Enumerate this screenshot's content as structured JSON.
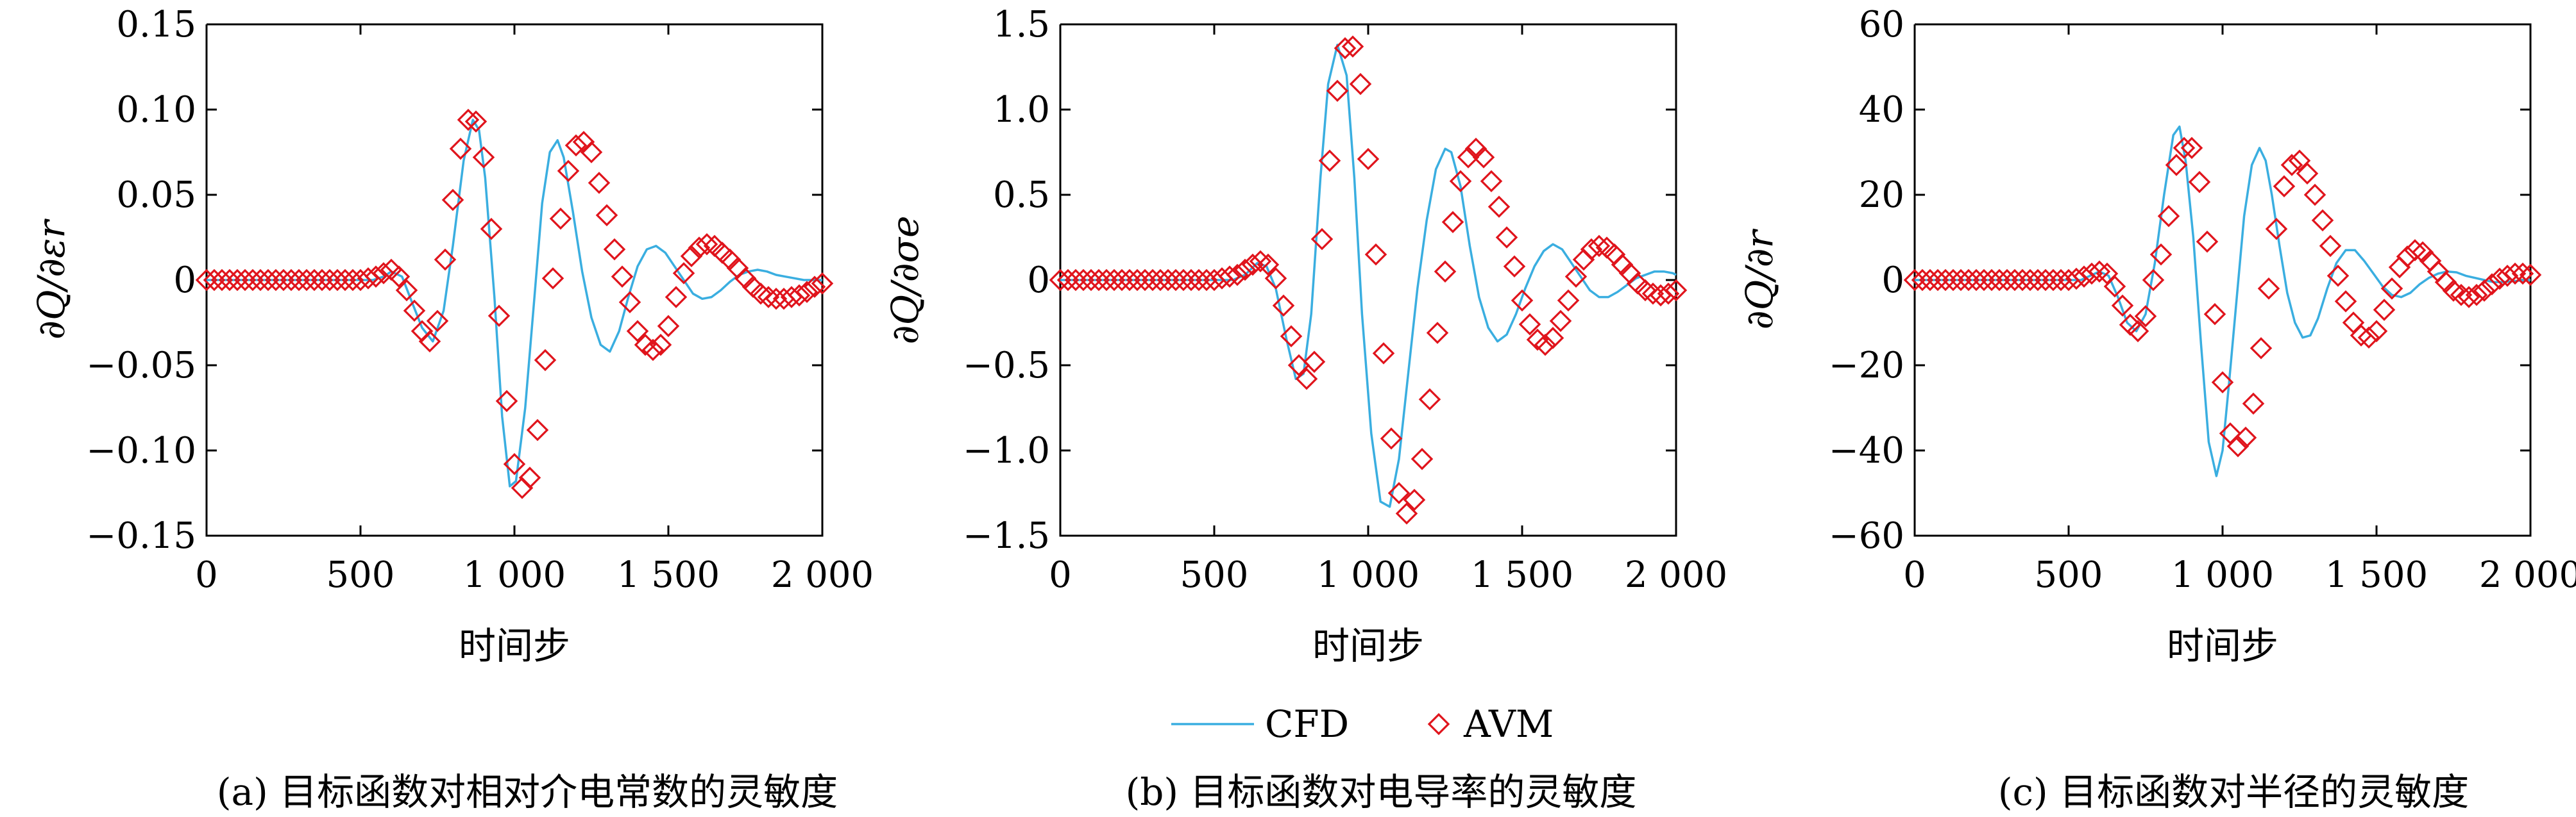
{
  "figure": {
    "xlabel": "时间步",
    "legend": {
      "cfd_label": "CFD",
      "avm_label": "AVM",
      "cfd_color": "#3aaee0",
      "avm_color": "#e0141c"
    },
    "panels": [
      {
        "caption": "(a) 目标函数对相对介电常数的灵敏度",
        "ylabel": "∂Q/∂εr"
      },
      {
        "caption": "(b) 目标函数对电导率的灵敏度",
        "ylabel": "∂Q/∂σe"
      },
      {
        "caption": "(c) 目标函数对半径的灵敏度",
        "ylabel": "∂Q/∂r"
      }
    ]
  },
  "chart_data": [
    {
      "type": "line",
      "ylabel": "∂Q/∂εr",
      "xlabel": "时间步",
      "xlim": [
        0,
        2000
      ],
      "ylim": [
        -0.15,
        0.15
      ],
      "x_ticks": [
        0,
        500,
        1000,
        1500,
        2000
      ],
      "x_tick_labels": [
        "0",
        "500",
        "1 000",
        "1 500",
        "2 000"
      ],
      "y_ticks": [
        -0.15,
        -0.1,
        -0.05,
        0,
        0.05,
        0.1,
        0.15
      ],
      "y_tick_labels": [
        "−0.15",
        "−0.10",
        "−0.05",
        "0",
        "0.05",
        "0.10",
        "0.15"
      ],
      "legend": "bottom-center",
      "grid": false,
      "series": [
        {
          "name": "CFD",
          "style": "line",
          "x": [
            0,
            540,
            575,
            600,
            635,
            665,
            700,
            735,
            770,
            800,
            835,
            865,
            885,
            905,
            935,
            960,
            985,
            1005,
            1035,
            1065,
            1090,
            1115,
            1140,
            1160,
            1190,
            1220,
            1250,
            1280,
            1310,
            1340,
            1370,
            1400,
            1430,
            1460,
            1490,
            1520,
            1550,
            1580,
            1610,
            1640,
            1670,
            1700,
            1730,
            1760,
            1790,
            1820,
            1850,
            1880,
            1910,
            1940,
            1970,
            2000
          ],
          "y": [
            0,
            0,
            0.002,
            0.005,
            0.002,
            -0.012,
            -0.028,
            -0.036,
            -0.018,
            0.02,
            0.07,
            0.094,
            0.088,
            0.06,
            -0.01,
            -0.08,
            -0.121,
            -0.118,
            -0.075,
            -0.01,
            0.045,
            0.075,
            0.082,
            0.072,
            0.04,
            0.005,
            -0.022,
            -0.038,
            -0.042,
            -0.03,
            -0.01,
            0.008,
            0.018,
            0.02,
            0.016,
            0.008,
            0,
            -0.008,
            -0.011,
            -0.01,
            -0.006,
            -0.001,
            0.003,
            0.005,
            0.006,
            0.005,
            0.003,
            0.002,
            0.001,
            0,
            0,
            0
          ]
        },
        {
          "name": "AVM",
          "style": "markers",
          "x": [
            0,
            25,
            50,
            75,
            100,
            125,
            150,
            175,
            200,
            225,
            250,
            275,
            300,
            325,
            350,
            375,
            400,
            425,
            450,
            475,
            500,
            525,
            550,
            575,
            600,
            625,
            650,
            675,
            700,
            725,
            750,
            775,
            800,
            825,
            850,
            875,
            900,
            925,
            950,
            975,
            1000,
            1025,
            1050,
            1075,
            1100,
            1125,
            1150,
            1175,
            1200,
            1225,
            1250,
            1275,
            1300,
            1325,
            1350,
            1375,
            1400,
            1425,
            1450,
            1475,
            1500,
            1525,
            1550,
            1575,
            1600,
            1625,
            1650,
            1675,
            1700,
            1725,
            1750,
            1775,
            1800,
            1825,
            1850,
            1875,
            1900,
            1925,
            1950,
            1975,
            2000
          ],
          "y": [
            0,
            0,
            0,
            0,
            0,
            0,
            0,
            0,
            0,
            0,
            0,
            0,
            0,
            0,
            0,
            0,
            0,
            0,
            0,
            0,
            0,
            0.001,
            0.002,
            0.004,
            0.006,
            0.002,
            -0.006,
            -0.018,
            -0.03,
            -0.036,
            -0.024,
            0.012,
            0.047,
            0.077,
            0.094,
            0.093,
            0.072,
            0.03,
            -0.021,
            -0.071,
            -0.108,
            -0.122,
            -0.116,
            -0.088,
            -0.047,
            0.001,
            0.036,
            0.064,
            0.079,
            0.081,
            0.075,
            0.057,
            0.038,
            0.018,
            0.002,
            -0.013,
            -0.03,
            -0.038,
            -0.041,
            -0.038,
            -0.027,
            -0.01,
            0.004,
            0.014,
            0.019,
            0.021,
            0.02,
            0.016,
            0.012,
            0.007,
            0.001,
            -0.004,
            -0.008,
            -0.01,
            -0.011,
            -0.011,
            -0.01,
            -0.009,
            -0.007,
            -0.004,
            -0.002
          ]
        }
      ]
    },
    {
      "type": "line",
      "ylabel": "∂Q/∂σe",
      "xlabel": "时间步",
      "xlim": [
        0,
        2000
      ],
      "ylim": [
        -1.5,
        1.5
      ],
      "x_ticks": [
        0,
        500,
        1000,
        1500,
        2000
      ],
      "x_tick_labels": [
        "0",
        "500",
        "1 000",
        "1 500",
        "2 000"
      ],
      "y_ticks": [
        -1.5,
        -1.0,
        -0.5,
        0,
        0.5,
        1.0,
        1.5
      ],
      "y_tick_labels": [
        "−1.5",
        "−1.0",
        "−0.5",
        "0",
        "0.5",
        "1.0",
        "1.5"
      ],
      "legend": "bottom-center",
      "grid": false,
      "series": [
        {
          "name": "CFD",
          "style": "line",
          "x": [
            0,
            560,
            600,
            640,
            670,
            700,
            735,
            765,
            790,
            815,
            845,
            870,
            900,
            930,
            955,
            980,
            1010,
            1040,
            1070,
            1100,
            1130,
            1160,
            1190,
            1220,
            1250,
            1270,
            1300,
            1330,
            1360,
            1390,
            1420,
            1450,
            1480,
            1510,
            1540,
            1570,
            1600,
            1630,
            1660,
            1690,
            1720,
            1750,
            1780,
            1810,
            1840,
            1870,
            1900,
            1930,
            1960,
            1990,
            2000
          ],
          "y": [
            0,
            0,
            0.03,
            0.1,
            0.08,
            -0.05,
            -0.35,
            -0.58,
            -0.55,
            -0.2,
            0.6,
            1.15,
            1.38,
            1.2,
            0.6,
            -0.2,
            -0.9,
            -1.3,
            -1.33,
            -1.05,
            -0.55,
            -0.05,
            0.35,
            0.65,
            0.77,
            0.75,
            0.55,
            0.2,
            -0.1,
            -0.28,
            -0.36,
            -0.32,
            -0.2,
            -0.05,
            0.08,
            0.17,
            0.21,
            0.18,
            0.1,
            0.02,
            -0.06,
            -0.1,
            -0.1,
            -0.07,
            -0.03,
            0.01,
            0.03,
            0.05,
            0.05,
            0.04,
            0.03
          ]
        },
        {
          "name": "AVM",
          "style": "markers",
          "x": [
            0,
            25,
            50,
            75,
            100,
            125,
            150,
            175,
            200,
            225,
            250,
            275,
            300,
            325,
            350,
            375,
            400,
            425,
            450,
            475,
            500,
            525,
            550,
            575,
            600,
            625,
            650,
            675,
            700,
            725,
            750,
            775,
            800,
            825,
            850,
            875,
            900,
            925,
            950,
            975,
            1000,
            1025,
            1050,
            1075,
            1100,
            1125,
            1150,
            1175,
            1200,
            1225,
            1250,
            1275,
            1300,
            1325,
            1350,
            1375,
            1400,
            1425,
            1450,
            1475,
            1500,
            1525,
            1550,
            1575,
            1600,
            1625,
            1650,
            1675,
            1700,
            1725,
            1750,
            1775,
            1800,
            1825,
            1850,
            1875,
            1900,
            1925,
            1950,
            1975,
            2000
          ],
          "y": [
            0,
            0,
            0,
            0,
            0,
            0,
            0,
            0,
            0,
            0,
            0,
            0,
            0,
            0,
            0,
            0,
            0,
            0,
            0,
            0,
            0,
            0.01,
            0.02,
            0.03,
            0.06,
            0.09,
            0.11,
            0.09,
            0.01,
            -0.15,
            -0.33,
            -0.5,
            -0.58,
            -0.48,
            0.24,
            0.7,
            1.11,
            1.36,
            1.37,
            1.15,
            0.71,
            0.15,
            -0.43,
            -0.93,
            -1.25,
            -1.37,
            -1.29,
            -1.05,
            -0.7,
            -0.31,
            0.05,
            0.34,
            0.58,
            0.72,
            0.77,
            0.72,
            0.58,
            0.43,
            0.25,
            0.08,
            -0.12,
            -0.26,
            -0.35,
            -0.38,
            -0.34,
            -0.24,
            -0.12,
            0.02,
            0.12,
            0.18,
            0.2,
            0.19,
            0.15,
            0.09,
            0.04,
            -0.02,
            -0.06,
            -0.08,
            -0.09,
            -0.08,
            -0.06
          ]
        }
      ]
    },
    {
      "type": "line",
      "ylabel": "∂Q/∂r",
      "xlabel": "时间步",
      "xlim": [
        0,
        2000
      ],
      "ylim": [
        -60,
        60
      ],
      "x_ticks": [
        0,
        500,
        1000,
        1500,
        2000
      ],
      "x_tick_labels": [
        "0",
        "500",
        "1 000",
        "1 500",
        "2 000"
      ],
      "y_ticks": [
        -60,
        -40,
        -20,
        0,
        20,
        40,
        60
      ],
      "y_tick_labels": [
        "−60",
        "−40",
        "−20",
        "0",
        "20",
        "40",
        "60"
      ],
      "legend": "bottom-center",
      "grid": false,
      "series": [
        {
          "name": "CFD",
          "style": "line",
          "x": [
            0,
            540,
            570,
            600,
            630,
            660,
            690,
            720,
            750,
            780,
            810,
            840,
            860,
            880,
            905,
            930,
            955,
            980,
            1000,
            1020,
            1045,
            1070,
            1095,
            1120,
            1140,
            1160,
            1185,
            1210,
            1235,
            1260,
            1285,
            1310,
            1340,
            1370,
            1400,
            1430,
            1460,
            1490,
            1520,
            1550,
            1580,
            1610,
            1640,
            1670,
            1700,
            1730,
            1760,
            1790,
            1820,
            1850,
            1880,
            1910,
            1940,
            1970,
            2000
          ],
          "y": [
            0,
            0,
            1.0,
            2.0,
            1.0,
            -4.0,
            -10.0,
            -12.0,
            -8.0,
            4.0,
            20.0,
            34.0,
            36.0,
            28.0,
            10.0,
            -15.0,
            -38.0,
            -46.0,
            -40.0,
            -25.0,
            -5.0,
            15.0,
            27.0,
            31.0,
            28.0,
            20.0,
            8.0,
            -3.0,
            -10.0,
            -13.5,
            -13.0,
            -9.0,
            -2.0,
            4.0,
            7.0,
            7.0,
            4.5,
            1.5,
            -1.5,
            -3.5,
            -4.0,
            -3.0,
            -1.0,
            0.5,
            1.5,
            2.0,
            1.8,
            1.0,
            0.5,
            0,
            -0.5,
            -0.5,
            -0.3,
            -0.1,
            0
          ]
        },
        {
          "name": "AVM",
          "style": "markers",
          "x": [
            0,
            25,
            50,
            75,
            100,
            125,
            150,
            175,
            200,
            225,
            250,
            275,
            300,
            325,
            350,
            375,
            400,
            425,
            450,
            475,
            500,
            525,
            550,
            575,
            600,
            625,
            650,
            675,
            700,
            725,
            750,
            775,
            800,
            825,
            850,
            875,
            900,
            925,
            950,
            975,
            1000,
            1025,
            1050,
            1075,
            1100,
            1125,
            1150,
            1175,
            1200,
            1225,
            1250,
            1275,
            1300,
            1325,
            1350,
            1375,
            1400,
            1425,
            1450,
            1475,
            1500,
            1525,
            1550,
            1575,
            1600,
            1625,
            1650,
            1675,
            1700,
            1725,
            1750,
            1775,
            1800,
            1825,
            1850,
            1875,
            1900,
            1925,
            1950,
            1975,
            2000
          ],
          "y": [
            0,
            0,
            0,
            0,
            0,
            0,
            0,
            0,
            0,
            0,
            0,
            0,
            0,
            0,
            0,
            0,
            0,
            0,
            0,
            0,
            0,
            0.3,
            0.8,
            1.5,
            2.0,
            1.5,
            -1.5,
            -6.0,
            -10.5,
            -12.0,
            -8.5,
            0,
            6.0,
            15.0,
            27.0,
            31.0,
            31.0,
            23.0,
            9.0,
            -8.0,
            -24.0,
            -36.0,
            -39.0,
            -37.0,
            -29.0,
            -16.0,
            -2.0,
            12.0,
            22.0,
            27.0,
            28.0,
            25.0,
            20.0,
            14.0,
            8.0,
            1.0,
            -5.0,
            -10.0,
            -13.0,
            -13.5,
            -12.0,
            -7.0,
            -2.0,
            3.0,
            5.5,
            7.0,
            6.5,
            4.5,
            2.0,
            -0.5,
            -2.5,
            -3.5,
            -4.0,
            -3.5,
            -2.5,
            -1.0,
            0.3,
            1.0,
            1.5,
            1.5,
            1.2
          ]
        }
      ]
    }
  ]
}
